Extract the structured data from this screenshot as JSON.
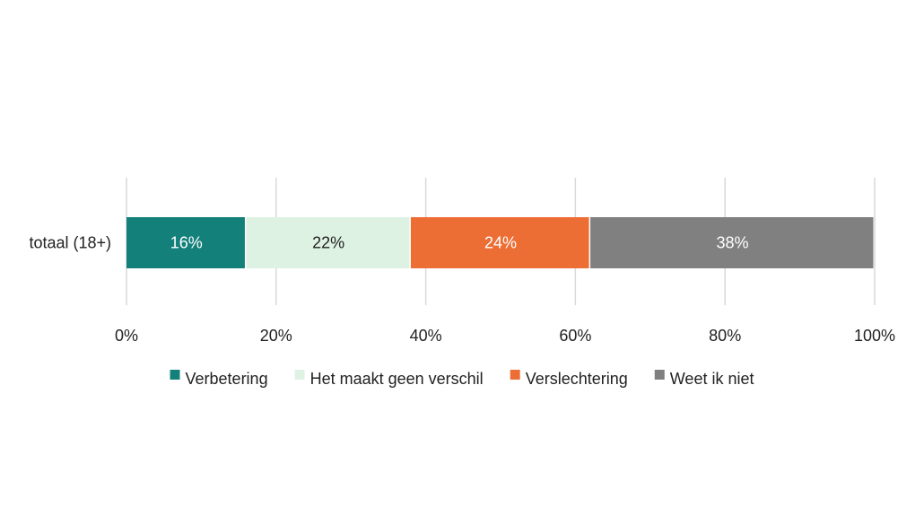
{
  "chart_data": {
    "type": "bar",
    "orientation": "horizontal",
    "stacked": "percent",
    "categories": [
      "totaal (18+)"
    ],
    "series": [
      {
        "name": "Verbetering",
        "values": [
          16
        ],
        "label": "16%",
        "color": "#14807a",
        "label_color": "#ffffff"
      },
      {
        "name": "Het maakt geen verschil",
        "values": [
          22
        ],
        "label": "22%",
        "color": "#def2e3",
        "label_color": "#222222"
      },
      {
        "name": "Verslechtering",
        "values": [
          24
        ],
        "label": "24%",
        "color": "#ec6e35",
        "label_color": "#ffffff"
      },
      {
        "name": "Weet ik niet",
        "values": [
          38
        ],
        "label": "38%",
        "color": "#808080",
        "label_color": "#ffffff"
      }
    ],
    "xlim": [
      0,
      100
    ],
    "xticks": [
      0,
      20,
      40,
      60,
      80,
      100
    ],
    "xtick_labels": [
      "0%",
      "20%",
      "40%",
      "60%",
      "80%",
      "100%"
    ],
    "grid": true,
    "legend_position": "bottom"
  }
}
